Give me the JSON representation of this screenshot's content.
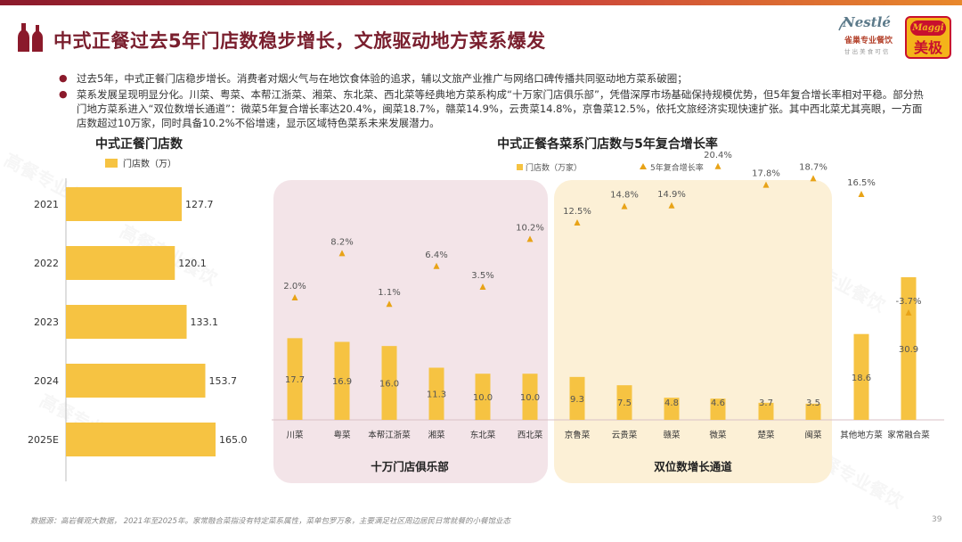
{
  "page": {
    "title": "中式正餐过去5年门店数稳步增长，文旅驱动地方菜系爆发",
    "bullets": [
      "过去5年，中式正餐门店稳步增长。消费者对烟火气与在地饮食体验的追求，辅以文旅产业推广与网络口碑传播共同驱动地方菜系破圈；",
      "菜系发展呈现明显分化。川菜、粤菜、本帮江浙菜、湘菜、东北菜、西北菜等经典地方菜系构成“十万家门店俱乐部”，凭借深厚市场基础保持规模优势，但5年复合增长率相对平稳。部分热门地方菜系进入“双位数增长通道”：微菜5年复合增长率达20.4%，闽菜18.7%，赣菜14.9%，云贵菜14.8%，京鲁菜12.5%，依托文旅经济实现快速扩张。其中西北菜尤其亮眼，一方面店数超过10万家，同时具备10.2%不俗增速，显示区域特色菜系未来发展潜力。"
    ],
    "footnote": "数据源：高岩餐观大数据， 2021年至2025年。家常融合菜指没有特定菜系属性，菜单包罗万象，主要满足社区周边居民日常就餐的小餐馆业态",
    "page_number": "39",
    "watermark_text": "高餐专业餐饮"
  },
  "logos": {
    "nestle": "Nestlé",
    "nestle_sub1": "雀巢专业餐饮",
    "nestle_sub2": "甘 出 美 食 可 信",
    "maggi": "Maggi",
    "maggi_cn": "美极"
  },
  "colors": {
    "bar": "#f6c342",
    "marker": "#e8a317",
    "title": "#7a1f2e",
    "panel_pink": "#f3e4e8",
    "panel_cream": "#fcf0d6"
  },
  "chart_data": [
    {
      "type": "bar",
      "orientation": "horizontal",
      "title": "中式正餐门店数",
      "legend": [
        "门店数（万）"
      ],
      "categories": [
        "2021",
        "2022",
        "2023",
        "2024",
        "2025E"
      ],
      "values": [
        127.7,
        120.1,
        133.1,
        153.7,
        165.0
      ],
      "labels": [
        "127.7",
        "120.1",
        "133.1",
        "153.7",
        "165.0"
      ]
    },
    {
      "type": "bar",
      "title": "中式正餐各菜系门店数与5年复合增长率",
      "legend": [
        "门店数（万家）",
        "5年复合增长率"
      ],
      "categories": [
        "川菜",
        "粤菜",
        "本帮江浙菜",
        "湘菜",
        "东北菜",
        "西北菜",
        "京鲁菜",
        "云贵菜",
        "赣菜",
        "微菜",
        "楚菜",
        "闽菜",
        "其他地方菜",
        "家常融合菜"
      ],
      "series": [
        {
          "name": "门店数（万家）",
          "values": [
            17.7,
            16.9,
            16.0,
            11.3,
            10.0,
            10.0,
            9.3,
            7.5,
            4.8,
            4.6,
            3.7,
            3.5,
            18.6,
            30.9
          ],
          "labels": [
            "17.7",
            "16.9",
            "16.0",
            "11.3",
            "10.0",
            "10.0",
            "9.3",
            "7.5",
            "4.8",
            "4.6",
            "3.7",
            "3.5",
            "18.6",
            "30.9"
          ]
        },
        {
          "name": "5年复合增长率",
          "values": [
            2.0,
            8.2,
            1.1,
            6.4,
            3.5,
            10.2,
            12.5,
            14.8,
            14.9,
            20.4,
            17.8,
            18.7,
            16.5,
            -3.7
          ],
          "labels": [
            "2.0%",
            "8.2%",
            "1.1%",
            "6.4%",
            "3.5%",
            "10.2%",
            "12.5%",
            "14.8%",
            "14.9%",
            "20.4%",
            "17.8%",
            "18.7%",
            "16.5%",
            "-3.7%"
          ]
        }
      ],
      "groups": [
        {
          "label": "十万门店俱乐部",
          "from": 0,
          "to": 5
        },
        {
          "label": "双位数增长通道",
          "from": 6,
          "to": 11
        }
      ]
    }
  ]
}
